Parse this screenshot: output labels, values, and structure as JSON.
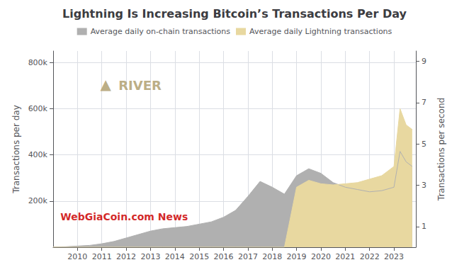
{
  "chart_data": {
    "type": "area",
    "title": "Lightning Is Increasing Bitcoin’s Transactions Per Day",
    "ylabel": "Transactions per day",
    "y2label": "Transactions per second",
    "x": [
      2009,
      2009.5,
      2010,
      2010.5,
      2011,
      2011.5,
      2012,
      2012.5,
      2013,
      2013.5,
      2014,
      2014.5,
      2015,
      2015.5,
      2016,
      2016.5,
      2017,
      2017.5,
      2018,
      2018.5,
      2019,
      2019.5,
      2020,
      2020.5,
      2021,
      2021.5,
      2022,
      2022.5,
      2023,
      2023.25,
      2023.5,
      2023.75
    ],
    "series": [
      {
        "name": "Average daily on-chain transactions",
        "color": "#b0b0b0",
        "values": [
          1000,
          2000,
          5000,
          8000,
          15000,
          25000,
          40000,
          55000,
          70000,
          80000,
          85000,
          90000,
          100000,
          110000,
          130000,
          160000,
          220000,
          285000,
          260000,
          230000,
          310000,
          340000,
          320000,
          280000,
          260000,
          250000,
          240000,
          245000,
          260000,
          415000,
          370000,
          350000
        ]
      },
      {
        "name": "Average daily Lightning transactions",
        "color": "#e8d8a0",
        "values": [
          0,
          0,
          0,
          0,
          0,
          0,
          0,
          0,
          0,
          0,
          0,
          0,
          0,
          0,
          0,
          0,
          0,
          0,
          0,
          0,
          260000,
          290000,
          275000,
          270000,
          275000,
          280000,
          295000,
          310000,
          350000,
          600000,
          530000,
          510000
        ]
      }
    ],
    "xlim": [
      2009,
      2023.9
    ],
    "xticks": [
      2010,
      2011,
      2012,
      2013,
      2014,
      2015,
      2016,
      2017,
      2018,
      2019,
      2020,
      2021,
      2022,
      2023
    ],
    "ylim": [
      0,
      850000
    ],
    "yticks": [
      {
        "value": 200000,
        "label": "200k"
      },
      {
        "value": 400000,
        "label": "400k"
      },
      {
        "value": 600000,
        "label": "600k"
      },
      {
        "value": 800000,
        "label": "800k"
      }
    ],
    "y2lim": [
      0,
      9.5
    ],
    "y2ticks": [
      1,
      3,
      5,
      7,
      9
    ],
    "grid": true,
    "legend": "top",
    "stacked": false,
    "annotations": [
      {
        "text": "▲",
        "color": "#b0a070"
      },
      {
        "text": "RIVER",
        "color": "#b0a070"
      },
      {
        "text": "WebGiaCoin.com News",
        "color": "#cc0000"
      }
    ]
  }
}
